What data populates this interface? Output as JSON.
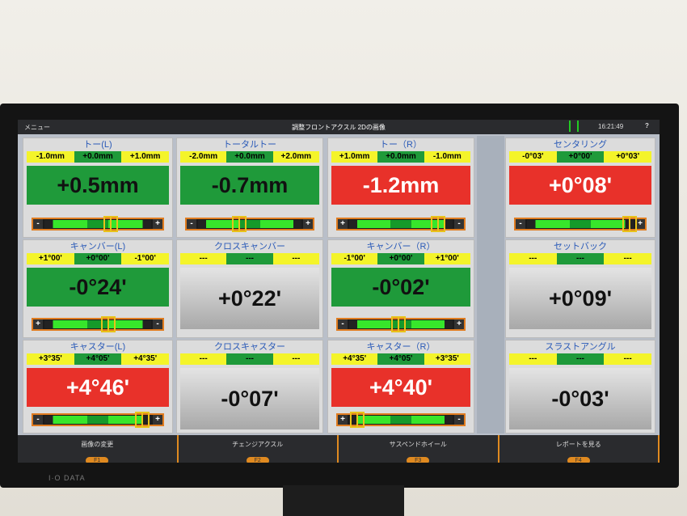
{
  "topbar": {
    "menu": "メニュー",
    "title": "調整フロントアクスル 2Dの画像",
    "time": "16:21:49",
    "help": "?"
  },
  "brand": "I·O DATA",
  "panels": [
    {
      "title": "トー(L)",
      "ranges": [
        "-1.0mm",
        "+0.0mm",
        "+1.0mm"
      ],
      "value": "+0.5mm",
      "status": "green",
      "slider": {
        "left": "-",
        "right": "+",
        "position": 0.62
      }
    },
    {
      "title": "トータルトー",
      "ranges": [
        "-2.0mm",
        "+0.0mm",
        "+2.0mm"
      ],
      "value": "-0.7mm",
      "status": "green",
      "slider": {
        "left": "-",
        "right": "+",
        "position": 0.4
      }
    },
    {
      "title": "トー（R）",
      "ranges": [
        "+1.0mm",
        "+0.0mm",
        "-1.0mm"
      ],
      "value": "-1.2mm",
      "status": "red",
      "slider": {
        "left": "+",
        "right": "-",
        "position": 0.86
      }
    },
    {
      "title": "センタリング",
      "ranges": [
        "-0°03'",
        "+0°00'",
        "+0°03'"
      ],
      "value": "+0°08'",
      "status": "red",
      "slider": {
        "left": "-",
        "right": "+",
        "position": 0.96
      }
    },
    {
      "title": "キャンバー(L)",
      "ranges": [
        "+1°00'",
        "+0°00'",
        "-1°00'"
      ],
      "value": "-0°24'",
      "status": "green",
      "slider": {
        "left": "+",
        "right": "-",
        "position": 0.6
      }
    },
    {
      "title": "クロスキャンバー",
      "ranges": [
        "---",
        "---",
        "---"
      ],
      "value": "+0°22'",
      "status": "gray"
    },
    {
      "title": "キャンバー（R）",
      "ranges": [
        "-1°00'",
        "+0°00'",
        "+1°00'"
      ],
      "value": "-0°02'",
      "status": "green",
      "slider": {
        "left": "-",
        "right": "+",
        "position": 0.48
      }
    },
    {
      "title": "セットバック",
      "ranges": [
        "---",
        "---",
        "---"
      ],
      "value": "+0°09'",
      "status": "gray"
    },
    {
      "title": "キャスター(L)",
      "ranges": [
        "+3°35'",
        "+4°05'",
        "+4°35'"
      ],
      "value": "+4°46'",
      "status": "red",
      "slider": {
        "left": "-",
        "right": "+",
        "position": 0.92
      }
    },
    {
      "title": "クロスキャスター",
      "ranges": [
        "---",
        "---",
        "---"
      ],
      "value": "-0°07'",
      "status": "gray"
    },
    {
      "title": "キャスター（R）",
      "ranges": [
        "+4°35'",
        "+4°05'",
        "+3°35'"
      ],
      "value": "+4°40'",
      "status": "red",
      "slider": {
        "left": "+",
        "right": "-",
        "position": 0.08
      }
    },
    {
      "title": "スラストアングル",
      "ranges": [
        "---",
        "---",
        "---"
      ],
      "value": "-0°03'",
      "status": "gray"
    }
  ],
  "bottom": [
    {
      "label": "画像の変更",
      "key": "F1"
    },
    {
      "label": "チェンジアクスル",
      "key": "F2"
    },
    {
      "label": "サスペンドホイール",
      "key": "F3"
    },
    {
      "label": "レポートを見る",
      "key": "F4"
    }
  ]
}
